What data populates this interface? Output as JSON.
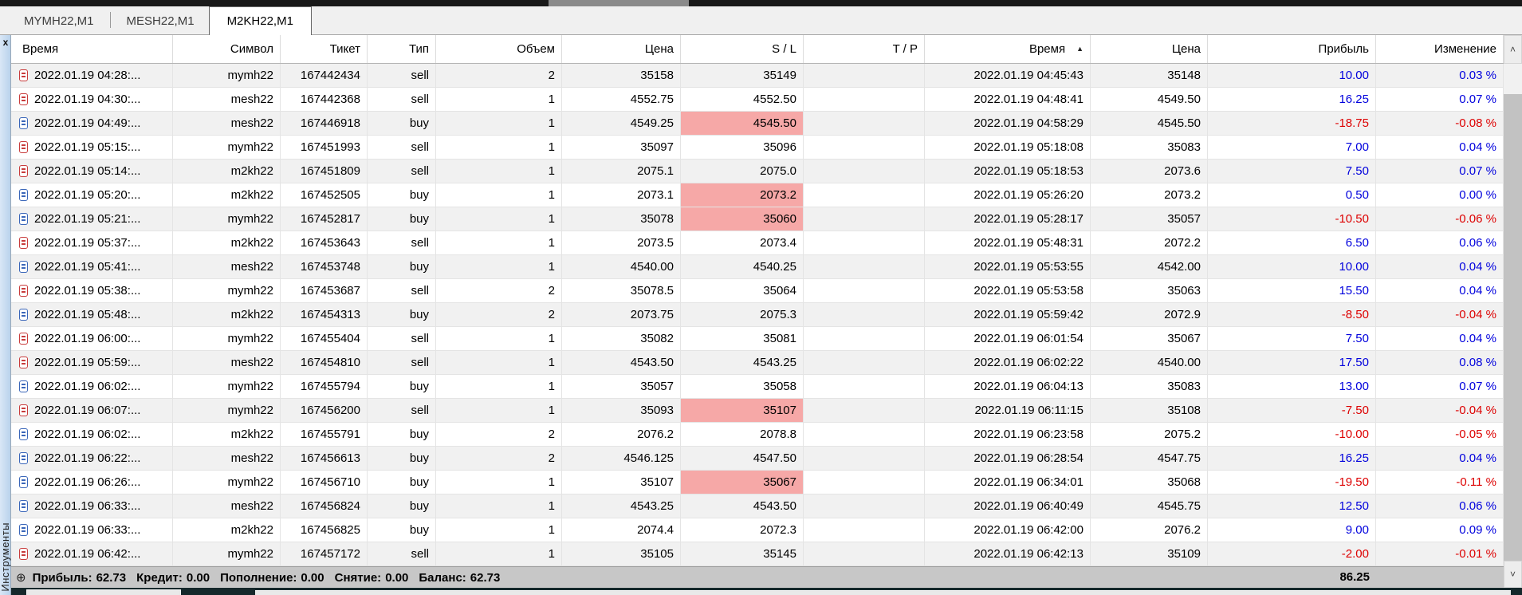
{
  "window": {
    "close_label": "x",
    "sidebar_vertical_label": "Инструменты"
  },
  "tabs": [
    {
      "label": "MYMH22,M1",
      "active": false
    },
    {
      "label": "MESH22,M1",
      "active": false
    },
    {
      "label": "M2KH22,M1",
      "active": true
    }
  ],
  "table": {
    "columns": [
      {
        "label": "Время"
      },
      {
        "label": "Символ"
      },
      {
        "label": "Тикет"
      },
      {
        "label": "Тип"
      },
      {
        "label": "Объем"
      },
      {
        "label": "Цена"
      },
      {
        "label": "S / L"
      },
      {
        "label": "T / P"
      },
      {
        "label": "Время",
        "sort_indicator": "▲"
      },
      {
        "label": "Цена"
      },
      {
        "label": "Прибыль"
      },
      {
        "label": "Изменение"
      }
    ],
    "rows": [
      {
        "type": "sell",
        "time_open": "2022.01.19 04:28:...",
        "symbol": "mymh22",
        "ticket": "167442434",
        "volume": "2",
        "price_open": "35158",
        "sl": "35149",
        "sl_hit": false,
        "tp": "",
        "time_close": "2022.01.19 04:45:43",
        "price_close": "35148",
        "profit": "10.00",
        "change": "0.03 %"
      },
      {
        "type": "sell",
        "time_open": "2022.01.19 04:30:...",
        "symbol": "mesh22",
        "ticket": "167442368",
        "volume": "1",
        "price_open": "4552.75",
        "sl": "4552.50",
        "sl_hit": false,
        "tp": "",
        "time_close": "2022.01.19 04:48:41",
        "price_close": "4549.50",
        "profit": "16.25",
        "change": "0.07 %"
      },
      {
        "type": "buy",
        "time_open": "2022.01.19 04:49:...",
        "symbol": "mesh22",
        "ticket": "167446918",
        "volume": "1",
        "price_open": "4549.25",
        "sl": "4545.50",
        "sl_hit": true,
        "tp": "",
        "time_close": "2022.01.19 04:58:29",
        "price_close": "4545.50",
        "profit": "-18.75",
        "change": "-0.08 %"
      },
      {
        "type": "sell",
        "time_open": "2022.01.19 05:15:...",
        "symbol": "mymh22",
        "ticket": "167451993",
        "volume": "1",
        "price_open": "35097",
        "sl": "35096",
        "sl_hit": false,
        "tp": "",
        "time_close": "2022.01.19 05:18:08",
        "price_close": "35083",
        "profit": "7.00",
        "change": "0.04 %"
      },
      {
        "type": "sell",
        "time_open": "2022.01.19 05:14:...",
        "symbol": "m2kh22",
        "ticket": "167451809",
        "volume": "1",
        "price_open": "2075.1",
        "sl": "2075.0",
        "sl_hit": false,
        "tp": "",
        "time_close": "2022.01.19 05:18:53",
        "price_close": "2073.6",
        "profit": "7.50",
        "change": "0.07 %"
      },
      {
        "type": "buy",
        "time_open": "2022.01.19 05:20:...",
        "symbol": "m2kh22",
        "ticket": "167452505",
        "volume": "1",
        "price_open": "2073.1",
        "sl": "2073.2",
        "sl_hit": true,
        "tp": "",
        "time_close": "2022.01.19 05:26:20",
        "price_close": "2073.2",
        "profit": "0.50",
        "change": "0.00 %"
      },
      {
        "type": "buy",
        "time_open": "2022.01.19 05:21:...",
        "symbol": "mymh22",
        "ticket": "167452817",
        "volume": "1",
        "price_open": "35078",
        "sl": "35060",
        "sl_hit": true,
        "tp": "",
        "time_close": "2022.01.19 05:28:17",
        "price_close": "35057",
        "profit": "-10.50",
        "change": "-0.06 %"
      },
      {
        "type": "sell",
        "time_open": "2022.01.19 05:37:...",
        "symbol": "m2kh22",
        "ticket": "167453643",
        "volume": "1",
        "price_open": "2073.5",
        "sl": "2073.4",
        "sl_hit": false,
        "tp": "",
        "time_close": "2022.01.19 05:48:31",
        "price_close": "2072.2",
        "profit": "6.50",
        "change": "0.06 %"
      },
      {
        "type": "buy",
        "time_open": "2022.01.19 05:41:...",
        "symbol": "mesh22",
        "ticket": "167453748",
        "volume": "1",
        "price_open": "4540.00",
        "sl": "4540.25",
        "sl_hit": false,
        "tp": "",
        "time_close": "2022.01.19 05:53:55",
        "price_close": "4542.00",
        "profit": "10.00",
        "change": "0.04 %"
      },
      {
        "type": "sell",
        "time_open": "2022.01.19 05:38:...",
        "symbol": "mymh22",
        "ticket": "167453687",
        "volume": "2",
        "price_open": "35078.5",
        "sl": "35064",
        "sl_hit": false,
        "tp": "",
        "time_close": "2022.01.19 05:53:58",
        "price_close": "35063",
        "profit": "15.50",
        "change": "0.04 %"
      },
      {
        "type": "buy",
        "time_open": "2022.01.19 05:48:...",
        "symbol": "m2kh22",
        "ticket": "167454313",
        "volume": "2",
        "price_open": "2073.75",
        "sl": "2075.3",
        "sl_hit": false,
        "tp": "",
        "time_close": "2022.01.19 05:59:42",
        "price_close": "2072.9",
        "profit": "-8.50",
        "change": "-0.04 %"
      },
      {
        "type": "sell",
        "time_open": "2022.01.19 06:00:...",
        "symbol": "mymh22",
        "ticket": "167455404",
        "volume": "1",
        "price_open": "35082",
        "sl": "35081",
        "sl_hit": false,
        "tp": "",
        "time_close": "2022.01.19 06:01:54",
        "price_close": "35067",
        "profit": "7.50",
        "change": "0.04 %"
      },
      {
        "type": "sell",
        "time_open": "2022.01.19 05:59:...",
        "symbol": "mesh22",
        "ticket": "167454810",
        "volume": "1",
        "price_open": "4543.50",
        "sl": "4543.25",
        "sl_hit": false,
        "tp": "",
        "time_close": "2022.01.19 06:02:22",
        "price_close": "4540.00",
        "profit": "17.50",
        "change": "0.08 %"
      },
      {
        "type": "buy",
        "time_open": "2022.01.19 06:02:...",
        "symbol": "mymh22",
        "ticket": "167455794",
        "volume": "1",
        "price_open": "35057",
        "sl": "35058",
        "sl_hit": false,
        "tp": "",
        "time_close": "2022.01.19 06:04:13",
        "price_close": "35083",
        "profit": "13.00",
        "change": "0.07 %"
      },
      {
        "type": "sell",
        "time_open": "2022.01.19 06:07:...",
        "symbol": "mymh22",
        "ticket": "167456200",
        "volume": "1",
        "price_open": "35093",
        "sl": "35107",
        "sl_hit": true,
        "tp": "",
        "time_close": "2022.01.19 06:11:15",
        "price_close": "35108",
        "profit": "-7.50",
        "change": "-0.04 %"
      },
      {
        "type": "buy",
        "time_open": "2022.01.19 06:02:...",
        "symbol": "m2kh22",
        "ticket": "167455791",
        "volume": "2",
        "price_open": "2076.2",
        "sl": "2078.8",
        "sl_hit": false,
        "tp": "",
        "time_close": "2022.01.19 06:23:58",
        "price_close": "2075.2",
        "profit": "-10.00",
        "change": "-0.05 %"
      },
      {
        "type": "buy",
        "time_open": "2022.01.19 06:22:...",
        "symbol": "mesh22",
        "ticket": "167456613",
        "volume": "2",
        "price_open": "4546.125",
        "sl": "4547.50",
        "sl_hit": false,
        "tp": "",
        "time_close": "2022.01.19 06:28:54",
        "price_close": "4547.75",
        "profit": "16.25",
        "change": "0.04 %"
      },
      {
        "type": "buy",
        "time_open": "2022.01.19 06:26:...",
        "symbol": "mymh22",
        "ticket": "167456710",
        "volume": "1",
        "price_open": "35107",
        "sl": "35067",
        "sl_hit": true,
        "tp": "",
        "time_close": "2022.01.19 06:34:01",
        "price_close": "35068",
        "profit": "-19.50",
        "change": "-0.11 %"
      },
      {
        "type": "buy",
        "time_open": "2022.01.19 06:33:...",
        "symbol": "mesh22",
        "ticket": "167456824",
        "volume": "1",
        "price_open": "4543.25",
        "sl": "4543.50",
        "sl_hit": false,
        "tp": "",
        "time_close": "2022.01.19 06:40:49",
        "price_close": "4545.75",
        "profit": "12.50",
        "change": "0.06 %"
      },
      {
        "type": "buy",
        "time_open": "2022.01.19 06:33:...",
        "symbol": "m2kh22",
        "ticket": "167456825",
        "volume": "1",
        "price_open": "2074.4",
        "sl": "2072.3",
        "sl_hit": false,
        "tp": "",
        "time_close": "2022.01.19 06:42:00",
        "price_close": "2076.2",
        "profit": "9.00",
        "change": "0.09 %"
      },
      {
        "type": "sell",
        "time_open": "2022.01.19 06:42:...",
        "symbol": "mymh22",
        "ticket": "167457172",
        "volume": "1",
        "price_open": "35105",
        "sl": "35145",
        "sl_hit": false,
        "tp": "",
        "time_close": "2022.01.19 06:42:13",
        "price_close": "35109",
        "profit": "-2.00",
        "change": "-0.01 %"
      }
    ]
  },
  "summary": {
    "expand_icon": "⊕",
    "items": [
      {
        "label": "Прибыль:",
        "value": "62.73"
      },
      {
        "label": "Кредит:",
        "value": "0.00"
      },
      {
        "label": "Пополнение:",
        "value": "0.00"
      },
      {
        "label": "Снятие:",
        "value": "0.00"
      },
      {
        "label": "Баланс:",
        "value": "62.73"
      }
    ],
    "profit_total": "86.25"
  },
  "colors": {
    "profit_positive": "#0000dd",
    "profit_negative": "#dd0000",
    "sl_hit_bg": "#f6a8a7",
    "row_alt_bg": "#f1f1f1",
    "summary_bg": "#c7c7c7",
    "sidebar_bg": "#c6d9ee"
  }
}
